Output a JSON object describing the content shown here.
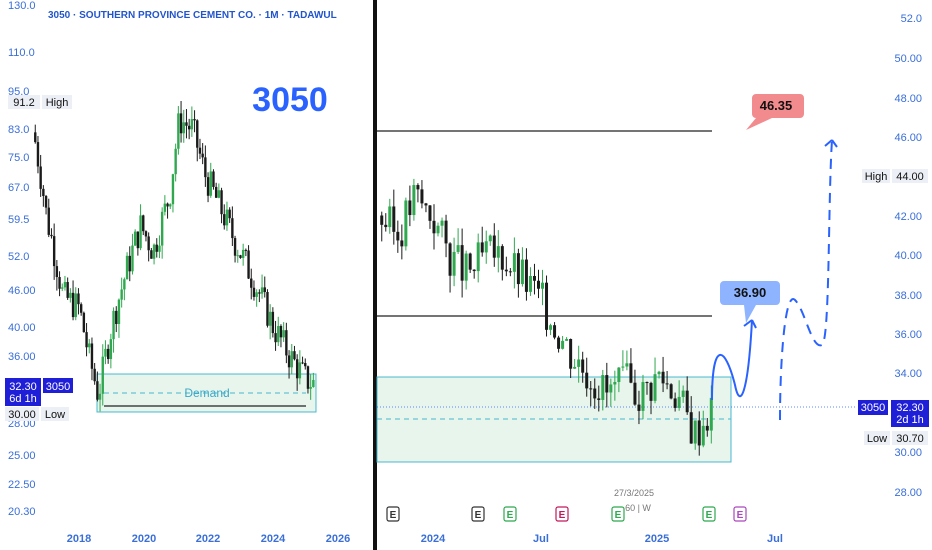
{
  "header": {
    "title": "3050 · SOUTHERN PROVINCE CEMENT CO. · 1M · TADAWUL"
  },
  "symbol_watermark": "3050",
  "colors": {
    "up": "#2fa84f",
    "down": "#1a1a1a",
    "demand_fill": "#e8f5ec",
    "demand_border": "#48b8d0",
    "accent": "#2962ff",
    "target_red": "#f28b8e",
    "target_blue": "#8fb4ff"
  },
  "left_panel": {
    "y_ticks": [
      "130.0",
      "110.0",
      "95.0",
      "83.0",
      "75.0",
      "67.0",
      "59.5",
      "52.0",
      "46.00",
      "40.00",
      "36.00",
      "28.00",
      "25.00",
      "22.50",
      "20.30"
    ],
    "x_ticks": [
      "2018",
      "2020",
      "2022",
      "2024",
      "2026"
    ],
    "high_value": "91.2",
    "high_label": "High",
    "low_value": "30.00",
    "low_label": "Low",
    "last_price": "32.30",
    "last_symbol": "3050",
    "countdown": "6d 1h",
    "demand_label": "Demand"
  },
  "right_panel": {
    "y_ticks": [
      "52.0",
      "50.00",
      "48.00",
      "46.00",
      "44.00",
      "42.00",
      "40.00",
      "38.00",
      "36.00",
      "34.00",
      "32.00",
      "30.00",
      "28.00"
    ],
    "x_ticks": [
      "2024",
      "Jul",
      "2025",
      "Jul"
    ],
    "high_value": "44.00",
    "high_label": "High",
    "low_value": "30.70",
    "low_label": "Low",
    "last_price": "32.30",
    "last_symbol": "3050",
    "countdown": "2d 1h",
    "target_1": "36.90",
    "target_2": "46.35",
    "event_date": "27/3/2025",
    "event_text": "60 | W",
    "event_markers": [
      "E",
      "E",
      "E",
      "E",
      "E",
      "E",
      "E"
    ]
  },
  "chart_data": [
    {
      "type": "candlestick",
      "timeframe": "1M",
      "x_range": [
        2016.5,
        2026
      ],
      "ylim": [
        20.3,
        130
      ],
      "scale": "log",
      "series": [
        {
          "name": "3050",
          "close_path": [
            [
              2016.6,
              82
            ],
            [
              2017.0,
              60
            ],
            [
              2017.5,
              45
            ],
            [
              2018.0,
              43
            ],
            [
              2018.3,
              36
            ],
            [
              2018.6,
              31
            ],
            [
              2019.0,
              40
            ],
            [
              2019.5,
              50
            ],
            [
              2019.9,
              58
            ],
            [
              2020.3,
              53
            ],
            [
              2020.8,
              65
            ],
            [
              2021.1,
              86
            ],
            [
              2021.5,
              83
            ],
            [
              2021.9,
              70
            ],
            [
              2022.3,
              63
            ],
            [
              2022.8,
              55
            ],
            [
              2023.2,
              50
            ],
            [
              2023.6,
              45
            ],
            [
              2024.0,
              40
            ],
            [
              2024.5,
              36
            ],
            [
              2025.0,
              33
            ],
            [
              2025.3,
              32.3
            ]
          ]
        }
      ],
      "zones": [
        {
          "name": "Demand",
          "from": 30.0,
          "to": 33.8
        }
      ],
      "lines": [
        30.5
      ]
    },
    {
      "type": "candlestick",
      "timeframe": "1W",
      "x_range": [
        "2023-09",
        "2025-08"
      ],
      "ylim": [
        27,
        53
      ],
      "scale": "linear",
      "series": [
        {
          "name": "3050",
          "close_path": [
            [
              "2023-09",
              42
            ],
            [
              "2023-10",
              41
            ],
            [
              "2023-11",
              43
            ],
            [
              "2023-12",
              42
            ],
            [
              "2024-01",
              40
            ],
            [
              "2024-02",
              39
            ],
            [
              "2024-03",
              40
            ],
            [
              "2024-04",
              40
            ],
            [
              "2024-05",
              39
            ],
            [
              "2024-06",
              38
            ],
            [
              "2024-07",
              36.5
            ],
            [
              "2024-08",
              35
            ],
            [
              "2024-09",
              34
            ],
            [
              "2024-10",
              33
            ],
            [
              "2024-11",
              33.5
            ],
            [
              "2024-12",
              33
            ],
            [
              "2025-01",
              34
            ],
            [
              "2025-02",
              33
            ],
            [
              "2025-03",
              31
            ],
            [
              "2025-04",
              32.3
            ]
          ]
        }
      ],
      "horizontal_lines": [
        46.35,
        36.9
      ],
      "zones": [
        {
          "from": 29.6,
          "to": 33.8
        }
      ],
      "targets": [
        36.9,
        46.35
      ]
    }
  ]
}
